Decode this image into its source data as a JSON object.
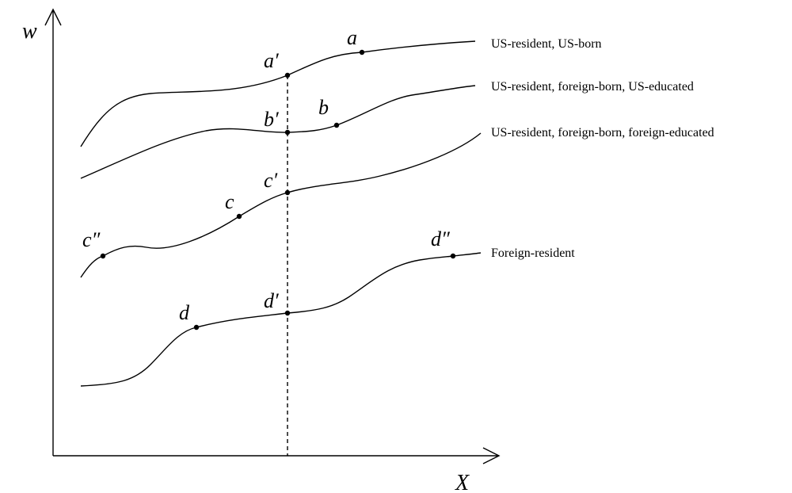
{
  "axes": {
    "y_label": "w",
    "x_label": "X"
  },
  "curves": [
    {
      "label": "US-resident, US-born"
    },
    {
      "label": "US-resident, foreign-born, US-educated"
    },
    {
      "label": "US-resident, foreign-born, foreign-educated"
    },
    {
      "label": "Foreign-resident"
    }
  ],
  "points": [
    {
      "label": "a"
    },
    {
      "label": "a′"
    },
    {
      "label": "b′"
    },
    {
      "label": "b"
    },
    {
      "label": "c′"
    },
    {
      "label": "c"
    },
    {
      "label": "c″"
    },
    {
      "label": "d′"
    },
    {
      "label": "d"
    },
    {
      "label": "d″"
    }
  ]
}
